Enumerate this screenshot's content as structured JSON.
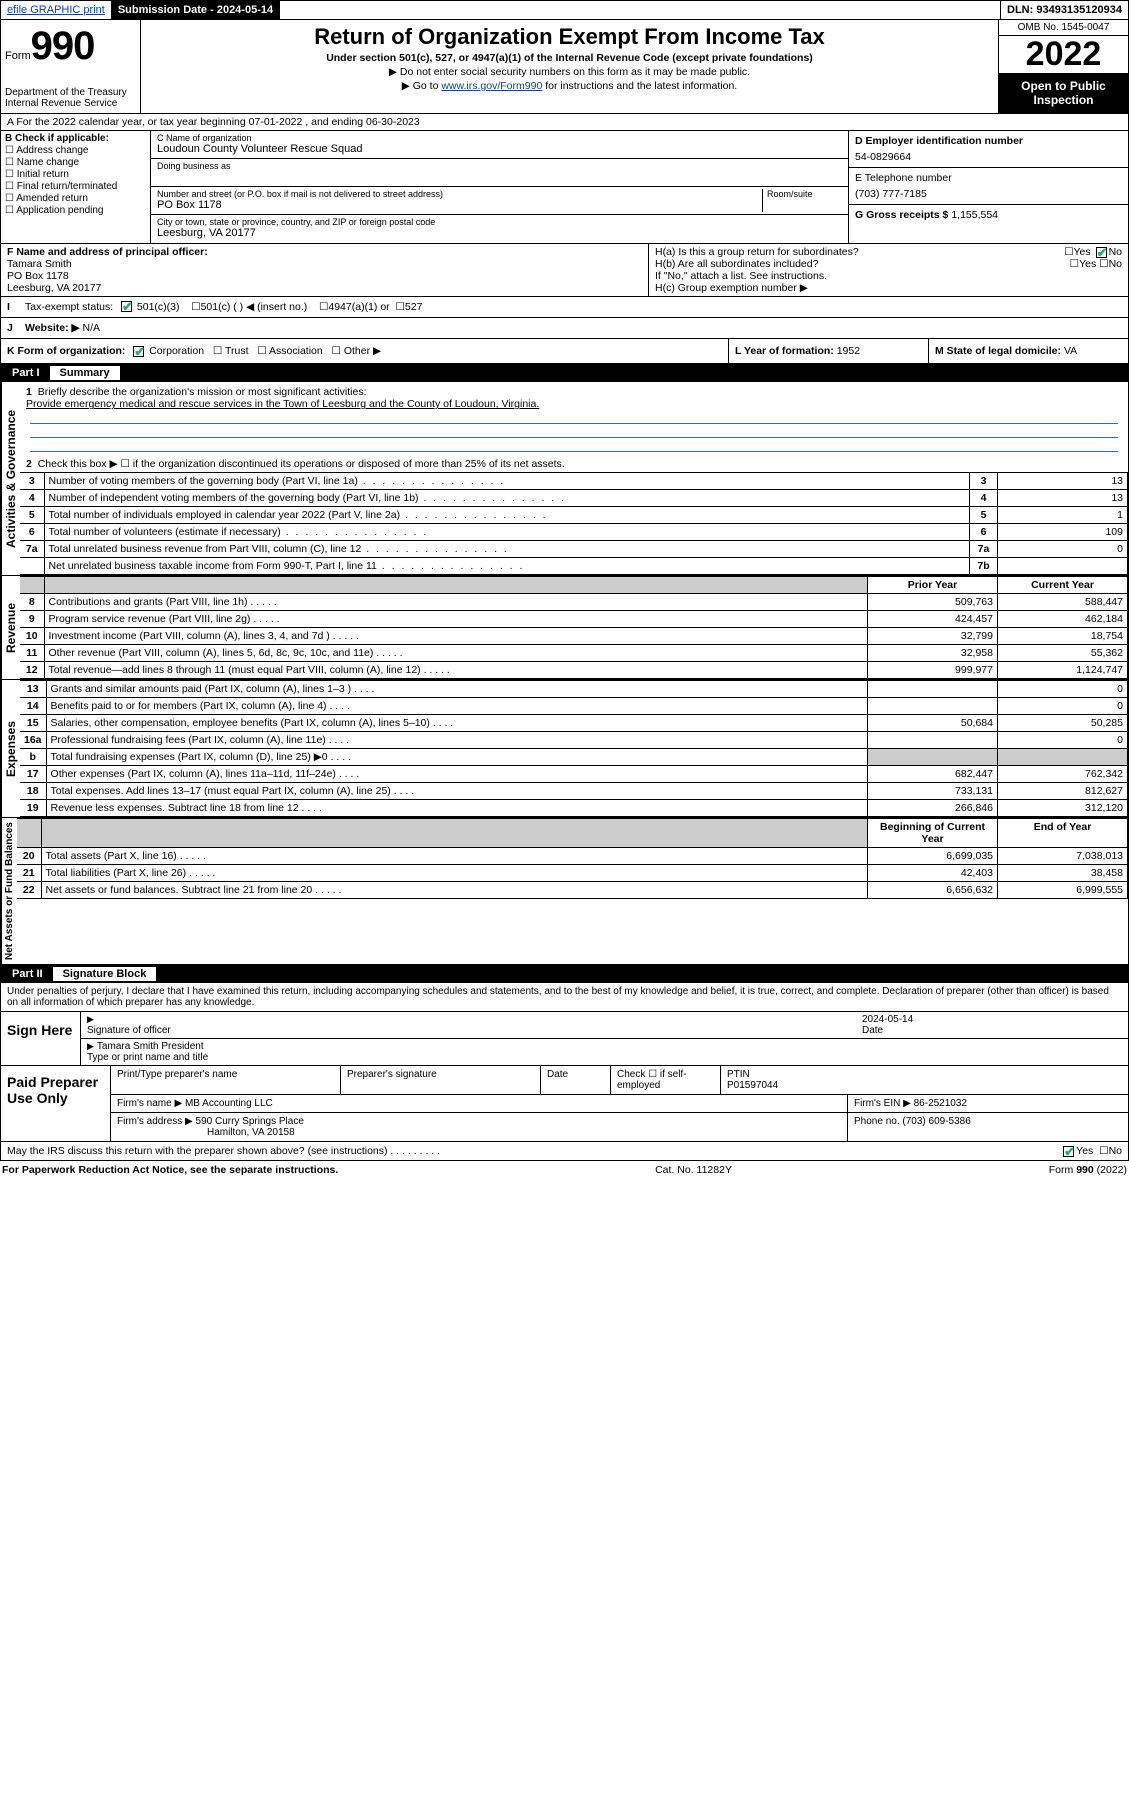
{
  "topbar": {
    "efile": "efile GRAPHIC print",
    "submission_label": "Submission Date - 2024-05-14",
    "dln_label": "DLN: 93493135120934"
  },
  "header": {
    "form_label": "Form",
    "form_no": "990",
    "dept": "Department of the Treasury",
    "irs": "Internal Revenue Service",
    "title": "Return of Organization Exempt From Income Tax",
    "subtitle": "Under section 501(c), 527, or 4947(a)(1) of the Internal Revenue Code (except private foundations)",
    "note1": "▶ Do not enter social security numbers on this form as it may be made public.",
    "note2_pre": "▶ Go to ",
    "note2_link": "www.irs.gov/Form990",
    "note2_post": " for instructions and the latest information.",
    "omb": "OMB No. 1545-0047",
    "year": "2022",
    "inspect": "Open to Public Inspection"
  },
  "boxA": "A For the 2022 calendar year, or tax year beginning 07-01-2022    , and ending 06-30-2023",
  "boxB": {
    "label": "B Check if applicable:",
    "items": [
      "Address change",
      "Name change",
      "Initial return",
      "Final return/terminated",
      "Amended return",
      "Application pending"
    ]
  },
  "boxC": {
    "name_label": "C Name of organization",
    "name": "Loudoun County Volunteer Rescue Squad",
    "dba_label": "Doing business as",
    "dba": "",
    "street_label": "Number and street (or P.O. box if mail is not delivered to street address)",
    "room_label": "Room/suite",
    "street": "PO Box 1178",
    "city_label": "City or town, state or province, country, and ZIP or foreign postal code",
    "city": "Leesburg, VA  20177"
  },
  "boxD": {
    "ein_label": "D Employer identification number",
    "ein": "54-0829664",
    "phone_label": "E Telephone number",
    "phone": "(703) 777-7185",
    "gross_label": "G Gross receipts $",
    "gross": "1,155,554"
  },
  "boxF": {
    "label": "F Name and address of principal officer:",
    "name": "Tamara Smith",
    "street": "PO Box 1178",
    "city": "Leesburg, VA  20177"
  },
  "boxH": {
    "a": "H(a)  Is this a group return for subordinates?",
    "a_yes": "Yes",
    "a_no": "No",
    "b": "H(b)  Are all subordinates included?",
    "b_yes": "Yes",
    "b_no": "No",
    "b_note": "If \"No,\" attach a list. See instructions.",
    "c": "H(c)  Group exemption number ▶"
  },
  "boxI": {
    "label": "Tax-exempt status:",
    "opts": [
      "501(c)(3)",
      "501(c) (  ) ◀ (insert no.)",
      "4947(a)(1) or",
      "527"
    ]
  },
  "boxJ": {
    "label": "Website: ▶",
    "val": "N/A"
  },
  "boxK": {
    "label": "K Form of organization:",
    "opts": [
      "Corporation",
      "Trust",
      "Association",
      "Other ▶"
    ],
    "year_label": "L Year of formation:",
    "year": "1952",
    "state_label": "M State of legal domicile:",
    "state": "VA"
  },
  "part1": {
    "num": "Part I",
    "title": "Summary"
  },
  "summary": {
    "l1_label": "Briefly describe the organization's mission or most significant activities:",
    "l1_text": "Provide emergency medical and rescue services in the Town of Leesburg and the County of Loudoun, Virginia.",
    "l2": "Check this box ▶ ☐  if the organization discontinued its operations or disposed of more than 25% of its net assets.",
    "rows_gov": [
      {
        "n": "3",
        "d": "Number of voting members of the governing body (Part VI, line 1a)",
        "c": "3",
        "v": "13"
      },
      {
        "n": "4",
        "d": "Number of independent voting members of the governing body (Part VI, line 1b)",
        "c": "4",
        "v": "13"
      },
      {
        "n": "5",
        "d": "Total number of individuals employed in calendar year 2022 (Part V, line 2a)",
        "c": "5",
        "v": "1"
      },
      {
        "n": "6",
        "d": "Total number of volunteers (estimate if necessary)",
        "c": "6",
        "v": "109"
      },
      {
        "n": "7a",
        "d": "Total unrelated business revenue from Part VIII, column (C), line 12",
        "c": "7a",
        "v": "0"
      },
      {
        "n": "",
        "d": "Net unrelated business taxable income from Form 990-T, Part I, line 11",
        "c": "7b",
        "v": ""
      }
    ],
    "col_prior": "Prior Year",
    "col_current": "Current Year",
    "rows_rev": [
      {
        "n": "8",
        "d": "Contributions and grants (Part VIII, line 1h)",
        "p": "509,763",
        "c": "588,447"
      },
      {
        "n": "9",
        "d": "Program service revenue (Part VIII, line 2g)",
        "p": "424,457",
        "c": "462,184"
      },
      {
        "n": "10",
        "d": "Investment income (Part VIII, column (A), lines 3, 4, and 7d )",
        "p": "32,799",
        "c": "18,754"
      },
      {
        "n": "11",
        "d": "Other revenue (Part VIII, column (A), lines 5, 6d, 8c, 9c, 10c, and 11e)",
        "p": "32,958",
        "c": "55,362"
      },
      {
        "n": "12",
        "d": "Total revenue—add lines 8 through 11 (must equal Part VIII, column (A), line 12)",
        "p": "999,977",
        "c": "1,124,747"
      }
    ],
    "rows_exp": [
      {
        "n": "13",
        "d": "Grants and similar amounts paid (Part IX, column (A), lines 1–3 )",
        "p": "",
        "c": "0"
      },
      {
        "n": "14",
        "d": "Benefits paid to or for members (Part IX, column (A), line 4)",
        "p": "",
        "c": "0"
      },
      {
        "n": "15",
        "d": "Salaries, other compensation, employee benefits (Part IX, column (A), lines 5–10)",
        "p": "50,684",
        "c": "50,285"
      },
      {
        "n": "16a",
        "d": "Professional fundraising fees (Part IX, column (A), line 11e)",
        "p": "",
        "c": "0"
      },
      {
        "n": "b",
        "d": "Total fundraising expenses (Part IX, column (D), line 25) ▶0",
        "p": "gray",
        "c": "gray"
      },
      {
        "n": "17",
        "d": "Other expenses (Part IX, column (A), lines 11a–11d, 11f–24e)",
        "p": "682,447",
        "c": "762,342"
      },
      {
        "n": "18",
        "d": "Total expenses. Add lines 13–17 (must equal Part IX, column (A), line 25)",
        "p": "733,131",
        "c": "812,627"
      },
      {
        "n": "19",
        "d": "Revenue less expenses. Subtract line 18 from line 12",
        "p": "266,846",
        "c": "312,120"
      }
    ],
    "col_begin": "Beginning of Current Year",
    "col_end": "End of Year",
    "rows_net": [
      {
        "n": "20",
        "d": "Total assets (Part X, line 16)",
        "p": "6,699,035",
        "c": "7,038,013"
      },
      {
        "n": "21",
        "d": "Total liabilities (Part X, line 26)",
        "p": "42,403",
        "c": "38,458"
      },
      {
        "n": "22",
        "d": "Net assets or fund balances. Subtract line 21 from line 20",
        "p": "6,656,632",
        "c": "6,999,555"
      }
    ],
    "sidelabels": {
      "gov": "Activities & Governance",
      "rev": "Revenue",
      "exp": "Expenses",
      "net": "Net Assets or Fund Balances"
    }
  },
  "part2": {
    "num": "Part II",
    "title": "Signature Block"
  },
  "sig": {
    "penalties": "Under penalties of perjury, I declare that I have examined this return, including accompanying schedules and statements, and to the best of my knowledge and belief, it is true, correct, and complete. Declaration of preparer (other than officer) is based on all information of which preparer has any knowledge.",
    "sign_here": "Sign Here",
    "sig_officer": "Signature of officer",
    "date_label": "Date",
    "date": "2024-05-14",
    "name_title": "Tamara Smith  President",
    "name_title_label": "Type or print name and title"
  },
  "prep": {
    "title": "Paid Preparer Use Only",
    "h1": "Print/Type preparer's name",
    "h2": "Preparer's signature",
    "h3": "Date",
    "h4a": "Check ☐ if self-employed",
    "h4b": "PTIN",
    "ptin": "P01597044",
    "firm_label": "Firm's name   ▶",
    "firm": "MB Accounting LLC",
    "ein_label": "Firm's EIN ▶",
    "ein": "86-2521032",
    "addr_label": "Firm's address ▶",
    "addr1": "590 Curry Springs Place",
    "addr2": "Hamilton, VA  20158",
    "phone_label": "Phone no.",
    "phone": "(703) 609-5386"
  },
  "discuss": {
    "q": "May the IRS discuss this return with the preparer shown above? (see instructions)",
    "yes": "Yes",
    "no": "No"
  },
  "footer": {
    "left": "For Paperwork Reduction Act Notice, see the separate instructions.",
    "mid": "Cat. No. 11282Y",
    "right": "Form 990 (2022)"
  }
}
